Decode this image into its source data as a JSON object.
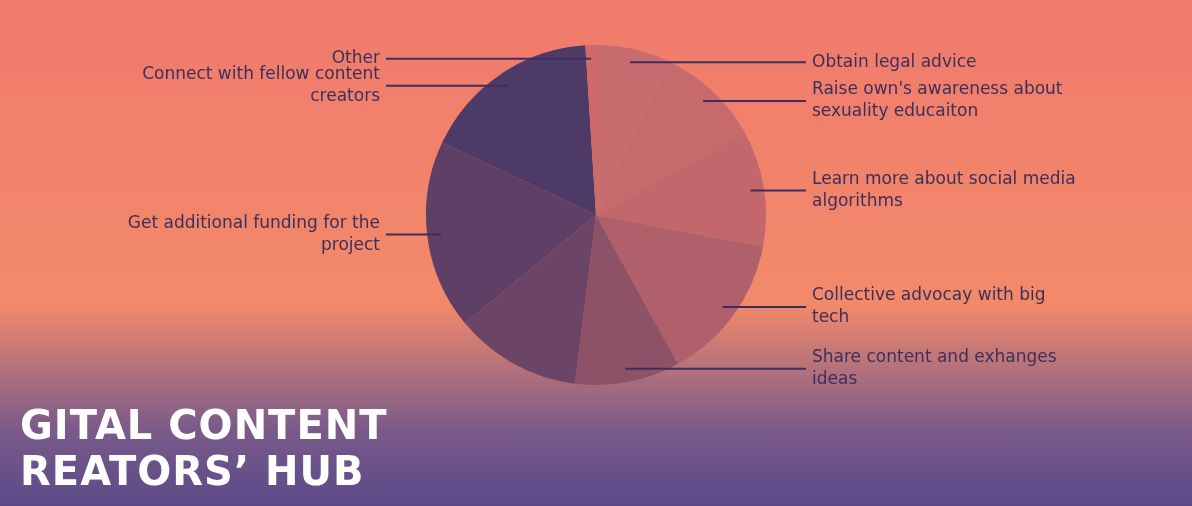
{
  "chart_data": {
    "type": "pie",
    "title": "GITAL CONTENT REATORS’ HUB",
    "categories": [
      "Obtain legal advice",
      "Raise own's awareness about sexuality educaiton",
      "Learn more about social media algorithms",
      "Collective advocay with big tech",
      "Share content and exhanges ideas",
      null,
      "Get additional funding for the project",
      "Connect with fellow content creators",
      "Other"
    ],
    "values": [
      7,
      10,
      11,
      14,
      10,
      12,
      18,
      17,
      1
    ],
    "colors": [
      "#c86c70",
      "#c66a6e",
      "#c2686c",
      "#b0606a",
      "#8e5268",
      "#6c4466",
      "#5e3f66",
      "#4e3a66",
      "#d06a6a"
    ]
  }
}
